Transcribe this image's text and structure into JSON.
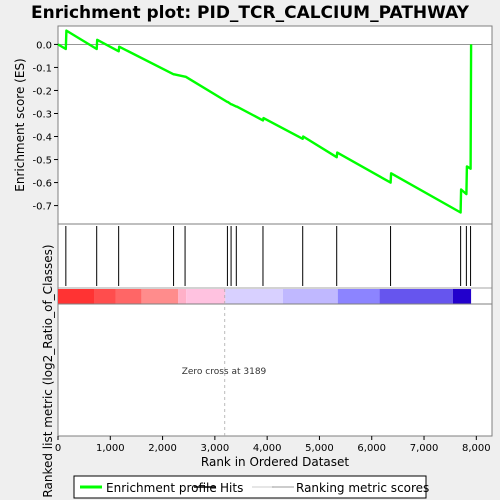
{
  "colors": {
    "enrichment_line": "#00ff00",
    "hits": "#000000",
    "zero_cross": "#aaaaaa",
    "frame": "#7f7f7f",
    "background": "#ffffff",
    "page_background": "#efefef"
  },
  "chart_data": [
    {
      "type": "line",
      "title": "Enrichment plot: PID_TCR_CALCIUM_PATHWAY",
      "ylabel": "Enrichment score (ES)",
      "xlim": [
        0,
        8300
      ],
      "ylim": [
        -0.78,
        0.08
      ],
      "yticks": [
        0.0,
        -0.1,
        -0.2,
        -0.3,
        -0.4,
        -0.5,
        -0.6,
        -0.7
      ],
      "ytick_labels": [
        "0.0",
        "-0.1",
        "-0.2",
        "-0.3",
        "-0.4",
        "-0.5",
        "-0.6",
        "-0.7"
      ],
      "series": [
        {
          "name": "Enrichment profile",
          "x": [
            0,
            150,
            160,
            740,
            750,
            1160,
            1170,
            2210,
            2220,
            2430,
            2440,
            3240,
            3250,
            3310,
            3320,
            3410,
            3420,
            3920,
            3930,
            4680,
            4690,
            5330,
            5340,
            6360,
            6370,
            7700,
            7710,
            7810,
            7820,
            7890,
            7900
          ],
          "y": [
            0.0,
            -0.02,
            0.06,
            -0.02,
            0.02,
            -0.03,
            -0.01,
            -0.13,
            -0.13,
            -0.14,
            -0.14,
            -0.25,
            -0.25,
            -0.26,
            -0.26,
            -0.27,
            -0.27,
            -0.33,
            -0.32,
            -0.41,
            -0.4,
            -0.49,
            -0.47,
            -0.6,
            -0.56,
            -0.73,
            -0.63,
            -0.65,
            -0.53,
            -0.54,
            0.0
          ]
        }
      ],
      "hits": [
        150,
        740,
        1160,
        2210,
        2430,
        3240,
        3310,
        3410,
        3920,
        4680,
        5330,
        6360,
        7700,
        7810,
        7890
      ]
    },
    {
      "type": "area",
      "ylabel": "Ranked list metric (log2_Ratio_of_Classes)",
      "xlabel": "Rank in Ordered Dataset",
      "xlim": [
        0,
        8300
      ],
      "xticks": [
        0,
        1000,
        2000,
        3000,
        4000,
        5000,
        6000,
        7000,
        8000
      ],
      "xtick_labels": [
        "0",
        "1,000",
        "2,000",
        "3,000",
        "4,000",
        "5,000",
        "6,000",
        "7,000",
        "8,000"
      ],
      "annotation": "Zero cross at 3189",
      "zero_cross": 3189
    }
  ],
  "legend": [
    {
      "label": "Enrichment profile",
      "color": "#00ff00",
      "kind": "line"
    },
    {
      "label": "Hits",
      "color": "#000000",
      "kind": "line"
    },
    {
      "label": "",
      "color": "#dddddd",
      "kind": "line"
    },
    {
      "label": "Ranking metric scores",
      "color": "#bbbbbb",
      "kind": "line"
    }
  ],
  "color_bar": [
    {
      "from": 0,
      "to": 700,
      "color": "#ff3333"
    },
    {
      "from": 700,
      "to": 1100,
      "color": "#ff4d4d"
    },
    {
      "from": 1100,
      "to": 1600,
      "color": "#ff6666"
    },
    {
      "from": 1600,
      "to": 2300,
      "color": "#ff8c8c"
    },
    {
      "from": 2300,
      "to": 2450,
      "color": "#ffb0c8"
    },
    {
      "from": 2450,
      "to": 3200,
      "color": "#ffc2e0"
    },
    {
      "from": 3200,
      "to": 4300,
      "color": "#d8d0ff"
    },
    {
      "from": 4300,
      "to": 5350,
      "color": "#c0b8ff"
    },
    {
      "from": 5350,
      "to": 6150,
      "color": "#8c84ff"
    },
    {
      "from": 6150,
      "to": 7550,
      "color": "#6655ee"
    },
    {
      "from": 7550,
      "to": 7900,
      "color": "#2200cc"
    }
  ]
}
